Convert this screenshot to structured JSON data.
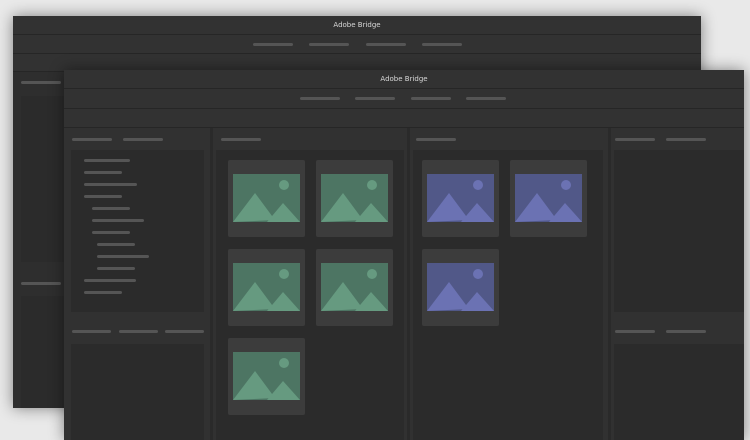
{
  "back_window": {
    "title": "Adobe Bridge"
  },
  "front_window": {
    "title": "Adobe Bridge"
  },
  "thumbnails": {
    "green_group": {
      "count": 5,
      "bg": "#4d7563",
      "fg": "#669a80"
    },
    "purple_group": {
      "count": 3,
      "bg": "#515888",
      "fg": "#6b72b3"
    }
  }
}
